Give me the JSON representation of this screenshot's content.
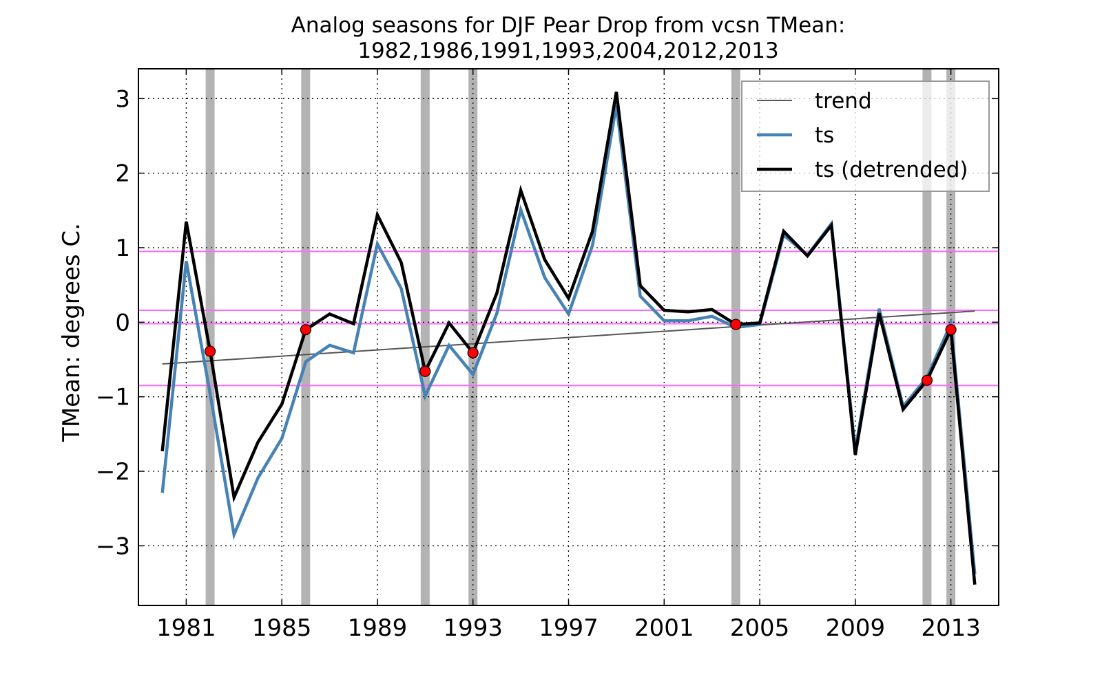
{
  "chart_data": {
    "type": "line",
    "title": "Analog seasons for DJF Pear Drop from vcsn TMean:",
    "subtitle": "1982,1986,1991,1993,2004,2012,2013",
    "ylabel": "TMean: degrees C.",
    "xlabel": "",
    "xlim": [
      1979.0,
      2015.0
    ],
    "ylim": [
      -3.8,
      3.4
    ],
    "x_ticks": [
      1981,
      1985,
      1989,
      1993,
      1997,
      2001,
      2005,
      2009,
      2013
    ],
    "x_tick_labels": [
      "1981",
      "1985",
      "1989",
      "1993",
      "1997",
      "2001",
      "2005",
      "2009",
      "2013"
    ],
    "y_ticks": [
      -3,
      -2,
      -1,
      0,
      1,
      2,
      3
    ],
    "y_tick_labels": [
      "−3",
      "−2",
      "−1",
      "0",
      "1",
      "2",
      "3"
    ],
    "grid": true,
    "legend": {
      "placement": "top-right",
      "entries": [
        "trend",
        "ts",
        "ts (detrended)"
      ]
    },
    "x": [
      1980,
      1981,
      1982,
      1983,
      1984,
      1985,
      1986,
      1987,
      1988,
      1989,
      1990,
      1991,
      1992,
      1993,
      1994,
      1995,
      1996,
      1997,
      1998,
      1999,
      2000,
      2001,
      2002,
      2003,
      2004,
      2005,
      2006,
      2007,
      2008,
      2009,
      2010,
      2011,
      2012,
      2013,
      2014
    ],
    "series": [
      {
        "name": "trend",
        "color": "#555555",
        "x": [
          1980,
          2014
        ],
        "values": [
          -0.56,
          0.15
        ]
      },
      {
        "name": "ts",
        "color": "#4682b4",
        "values": [
          -2.29,
          0.82,
          -0.96,
          -2.85,
          -2.09,
          -1.56,
          -0.53,
          -0.31,
          -0.41,
          1.05,
          0.45,
          -0.99,
          -0.31,
          -0.7,
          0.12,
          1.51,
          0.6,
          0.11,
          1.03,
          2.91,
          0.35,
          0.02,
          0.02,
          0.08,
          -0.07,
          -0.03,
          1.17,
          0.9,
          1.32,
          -1.72,
          0.18,
          -1.13,
          -0.74,
          -0.02,
          -3.38
        ]
      },
      {
        "name": "ts (detrended)",
        "color": "#000000",
        "values": [
          -1.73,
          1.35,
          -0.39,
          -2.35,
          -1.61,
          -1.1,
          -0.1,
          0.11,
          -0.02,
          1.44,
          0.8,
          -0.66,
          -0.01,
          -0.41,
          0.39,
          1.77,
          0.84,
          0.32,
          1.22,
          3.09,
          0.49,
          0.16,
          0.14,
          0.17,
          -0.03,
          -0.01,
          1.22,
          0.89,
          1.3,
          -1.78,
          0.12,
          -1.17,
          -0.78,
          -0.1,
          -3.52
        ]
      }
    ],
    "analog_years": [
      1982,
      1986,
      1991,
      1993,
      2004,
      2012,
      2013
    ],
    "analog_band_color": "#999999",
    "marker_color": "#ff0000",
    "horizontal_lines": {
      "color": "#ff66ff",
      "values": [
        0.95,
        0.16,
        -0.02,
        -0.85
      ]
    }
  }
}
